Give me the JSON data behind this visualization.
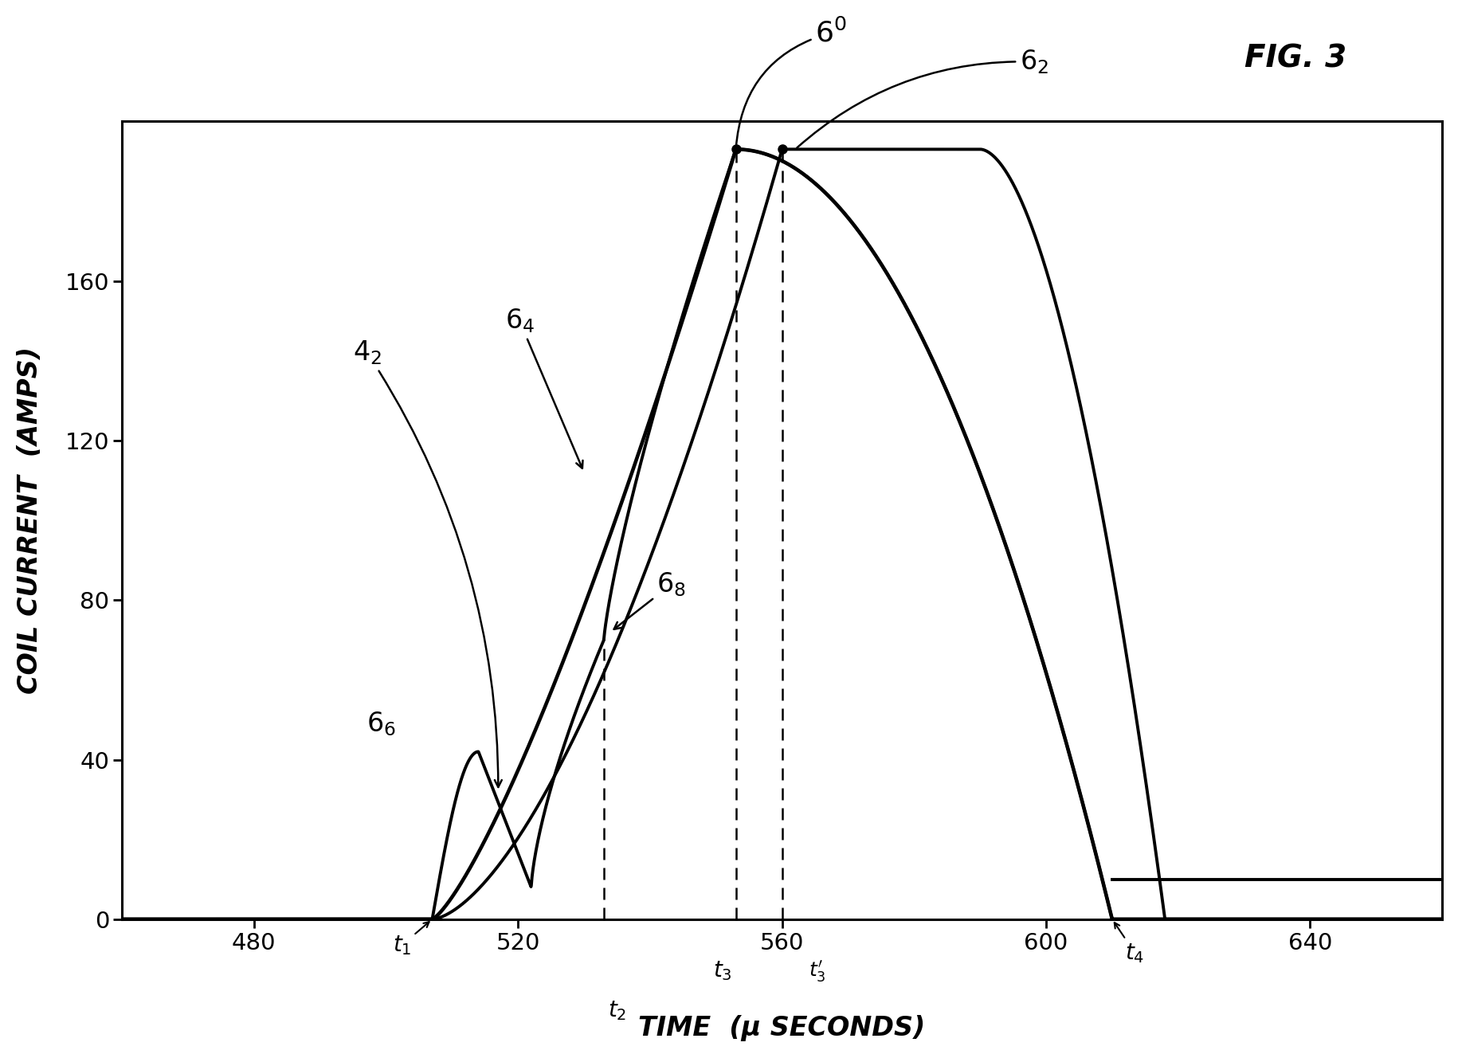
{
  "title": "FIG. 3",
  "xlabel": "TIME  (μ SECONDS)",
  "ylabel": "COIL CURRENT  (AMPS)",
  "xlim": [
    460,
    660
  ],
  "ylim": [
    0,
    200
  ],
  "yticks": [
    0,
    40,
    80,
    120,
    160
  ],
  "xticks": [
    480,
    520,
    560,
    600,
    640
  ],
  "background_color": "#ffffff",
  "line_color": "#000000",
  "t1": 507,
  "t2": 533,
  "t3": 553,
  "t3p": 560,
  "t4": 610,
  "peak": 193
}
